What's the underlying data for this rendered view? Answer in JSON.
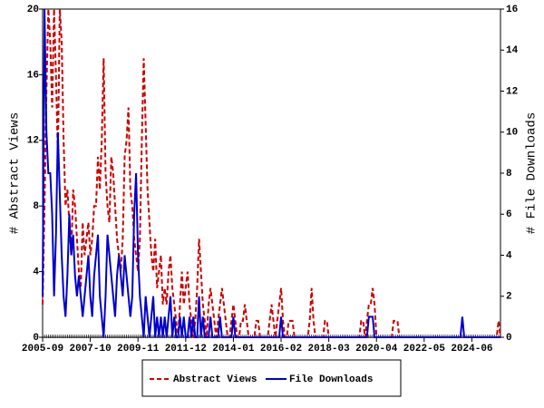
{
  "chart_data": {
    "type": "line",
    "x": [
      "2005-09",
      "2005-10",
      "2005-11",
      "2005-12",
      "2006-01",
      "2006-02",
      "2006-03",
      "2006-04",
      "2006-05",
      "2006-06",
      "2006-07",
      "2006-08",
      "2006-09",
      "2006-10",
      "2006-11",
      "2006-12",
      "2007-01",
      "2007-02",
      "2007-03",
      "2007-04",
      "2007-05",
      "2007-06",
      "2007-07",
      "2007-08",
      "2007-09",
      "2007-10",
      "2007-11",
      "2007-12",
      "2008-01",
      "2008-02",
      "2008-03",
      "2008-04",
      "2008-05",
      "2008-06",
      "2008-07",
      "2008-08",
      "2008-09",
      "2008-10",
      "2008-11",
      "2008-12",
      "2009-01",
      "2009-02",
      "2009-03",
      "2009-04",
      "2009-05",
      "2009-06",
      "2009-07",
      "2009-08",
      "2009-09",
      "2009-10",
      "2009-11",
      "2009-12",
      "2010-01",
      "2010-02",
      "2010-03",
      "2010-04",
      "2010-05",
      "2010-06",
      "2010-07",
      "2010-08",
      "2010-09",
      "2010-10",
      "2010-11",
      "2010-12",
      "2011-01",
      "2011-02",
      "2011-03",
      "2011-04",
      "2011-05",
      "2011-06",
      "2011-07",
      "2011-08",
      "2011-09",
      "2011-10",
      "2011-11",
      "2011-12",
      "2012-01",
      "2012-02",
      "2012-03",
      "2012-04",
      "2012-05",
      "2012-06",
      "2012-07",
      "2012-08",
      "2012-09",
      "2012-10",
      "2012-11",
      "2012-12",
      "2013-01",
      "2013-02",
      "2013-03",
      "2013-04",
      "2013-05",
      "2013-06",
      "2013-07",
      "2013-08",
      "2013-09",
      "2013-10",
      "2013-11",
      "2013-12",
      "2014-01",
      "2014-02",
      "2014-03",
      "2014-04",
      "2014-05",
      "2014-06",
      "2014-07",
      "2014-08",
      "2014-09",
      "2014-10",
      "2014-11",
      "2014-12",
      "2015-01",
      "2015-02",
      "2015-03",
      "2015-04",
      "2015-05",
      "2015-06",
      "2015-07",
      "2015-08",
      "2015-09",
      "2015-10",
      "2015-11",
      "2015-12",
      "2016-01",
      "2016-02",
      "2016-03",
      "2016-04",
      "2016-05",
      "2016-06",
      "2016-07",
      "2016-08",
      "2016-09",
      "2016-10",
      "2016-11",
      "2016-12",
      "2017-01",
      "2017-02",
      "2017-03",
      "2017-04",
      "2017-05",
      "2017-06",
      "2017-07",
      "2017-08",
      "2017-09",
      "2017-10",
      "2017-11",
      "2017-12",
      "2018-01",
      "2018-02",
      "2018-03",
      "2018-04",
      "2018-05",
      "2018-06",
      "2018-07",
      "2018-08",
      "2018-09",
      "2018-10",
      "2018-11",
      "2018-12",
      "2019-01",
      "2019-02",
      "2019-03",
      "2019-04",
      "2019-05",
      "2019-06",
      "2019-07",
      "2019-08",
      "2019-09",
      "2019-10",
      "2019-11",
      "2019-12",
      "2020-01",
      "2020-02",
      "2020-03",
      "2020-04",
      "2020-05",
      "2020-06",
      "2020-07",
      "2020-08",
      "2020-09",
      "2020-10",
      "2020-11",
      "2020-12",
      "2021-01",
      "2021-02",
      "2021-03",
      "2021-04",
      "2021-05",
      "2021-06",
      "2021-07",
      "2021-08",
      "2021-09",
      "2021-10",
      "2021-11",
      "2021-12",
      "2022-01",
      "2022-02",
      "2022-03",
      "2022-04",
      "2022-05",
      "2022-06",
      "2022-07",
      "2022-08",
      "2022-09",
      "2022-10",
      "2022-11",
      "2022-12",
      "2023-01",
      "2023-02",
      "2023-03",
      "2023-04",
      "2023-05",
      "2023-06",
      "2023-07",
      "2023-08",
      "2023-09",
      "2023-10",
      "2023-11",
      "2023-12",
      "2024-01",
      "2024-02",
      "2024-03",
      "2024-04",
      "2024-05",
      "2024-06",
      "2024-07",
      "2024-08",
      "2024-09",
      "2024-10",
      "2024-11",
      "2024-12",
      "2025-01",
      "2025-02",
      "2025-03",
      "2025-04",
      "2025-05",
      "2025-06",
      "2025-07",
      "2025-08",
      "2025-09"
    ],
    "xticks": [
      "2005-09",
      "2007-10",
      "2009-11",
      "2011-12",
      "2014-01",
      "2016-02",
      "2018-03",
      "2020-04",
      "2022-05",
      "2024-06"
    ],
    "ylabel": "# Abstract Views",
    "y2label": "# File Downloads",
    "ylim": [
      0,
      20
    ],
    "yticks": [
      0,
      4,
      8,
      12,
      16,
      20
    ],
    "y2lim": [
      0,
      16
    ],
    "y2ticks": [
      0,
      2,
      4,
      6,
      8,
      10,
      12,
      14,
      16
    ],
    "series": [
      {
        "name": "Abstract Views",
        "color": "#cc0000",
        "dashed": true,
        "values": [
          2,
          8,
          15,
          20,
          18,
          14,
          20,
          16,
          11,
          20,
          18,
          12,
          8,
          9,
          7,
          5,
          9,
          8,
          6,
          4,
          3,
          7,
          5,
          6,
          7,
          5,
          6,
          8,
          8,
          11,
          9,
          12,
          17,
          10,
          8,
          7,
          11,
          10,
          8,
          6,
          5,
          4,
          6,
          11,
          12,
          14,
          9,
          8,
          6,
          5,
          4,
          6,
          12,
          17,
          13,
          9,
          7,
          5,
          4,
          6,
          3,
          4,
          5,
          2,
          3,
          2,
          4,
          5,
          3,
          2,
          1,
          0,
          2,
          4,
          2,
          3,
          4,
          2,
          1,
          0,
          1,
          3,
          6,
          4,
          2,
          1,
          0,
          2,
          3,
          2,
          1,
          0,
          1,
          2,
          3,
          2,
          1,
          0,
          0,
          1,
          2,
          1,
          0,
          0,
          1,
          1,
          2,
          1,
          0,
          0,
          0,
          0,
          1,
          1,
          0,
          0,
          0,
          0,
          0,
          1,
          2,
          1,
          0,
          1,
          2,
          3,
          1,
          0,
          0,
          1,
          1,
          1,
          0,
          0,
          0,
          0,
          0,
          0,
          0,
          0,
          1,
          3,
          1,
          0,
          0,
          0,
          0,
          0,
          1,
          1,
          0,
          0,
          0,
          0,
          0,
          0,
          0,
          0,
          0,
          0,
          0,
          0,
          0,
          0,
          0,
          0,
          0,
          1,
          1,
          0,
          1,
          2,
          2,
          3,
          2,
          0,
          0,
          0,
          0,
          0,
          0,
          0,
          0,
          0,
          1,
          1,
          1,
          0,
          0,
          0,
          0,
          0,
          0,
          0,
          0,
          0,
          0,
          0,
          0,
          0,
          0,
          0,
          0,
          0,
          0,
          0,
          0,
          0,
          0,
          0,
          0,
          0,
          0,
          0,
          0,
          0,
          0,
          0,
          0,
          0,
          0,
          0,
          0,
          0,
          0,
          0,
          0,
          0,
          0,
          0,
          0,
          0,
          0,
          0,
          0,
          0,
          0,
          0,
          0,
          1,
          0
        ]
      },
      {
        "name": "File Downloads",
        "color": "#0000cc",
        "dashed": false,
        "axis": "y2",
        "values": [
          2,
          16,
          10,
          8,
          8,
          6,
          2,
          5,
          10,
          7,
          4,
          2,
          1,
          3,
          6,
          4,
          5,
          3,
          2,
          3,
          2,
          1,
          2,
          3,
          4,
          2,
          1,
          3,
          4,
          5,
          2,
          1,
          0,
          2,
          5,
          4,
          3,
          2,
          1,
          3,
          4,
          3,
          2,
          4,
          3,
          2,
          1,
          2,
          6,
          8,
          4,
          2,
          1,
          0,
          2,
          1,
          0,
          1,
          2,
          0,
          1,
          0,
          1,
          0,
          1,
          0,
          1,
          2,
          0,
          1,
          0,
          0,
          1,
          0,
          1,
          0,
          0,
          1,
          0,
          1,
          0,
          0,
          2,
          0,
          1,
          0,
          0,
          0,
          1,
          0,
          0,
          0,
          0,
          1,
          0,
          0,
          0,
          0,
          0,
          0,
          1,
          0,
          0,
          0,
          0,
          0,
          0,
          0,
          0,
          0,
          0,
          0,
          0,
          0,
          0,
          0,
          0,
          0,
          0,
          0,
          0,
          0,
          0,
          0,
          0,
          1,
          0,
          0,
          0,
          0,
          0,
          0,
          0,
          0,
          0,
          0,
          0,
          0,
          0,
          0,
          0,
          0,
          0,
          0,
          0,
          0,
          0,
          0,
          0,
          0,
          0,
          0,
          0,
          0,
          0,
          0,
          0,
          0,
          0,
          0,
          0,
          0,
          0,
          0,
          0,
          0,
          0,
          0,
          0,
          0,
          0,
          1,
          1,
          1,
          0,
          0,
          0,
          0,
          0,
          0,
          0,
          0,
          0,
          0,
          0,
          0,
          0,
          0,
          0,
          0,
          0,
          0,
          0,
          0,
          0,
          0,
          0,
          0,
          0,
          0,
          0,
          0,
          0,
          0,
          0,
          0,
          0,
          0,
          0,
          0,
          0,
          0,
          0,
          0,
          0,
          0,
          0,
          0,
          0,
          0,
          1,
          0,
          0,
          0,
          0,
          0,
          0,
          0,
          0,
          0,
          0,
          0,
          0,
          0,
          0,
          0,
          0,
          0,
          0,
          0,
          0
        ]
      }
    ]
  }
}
